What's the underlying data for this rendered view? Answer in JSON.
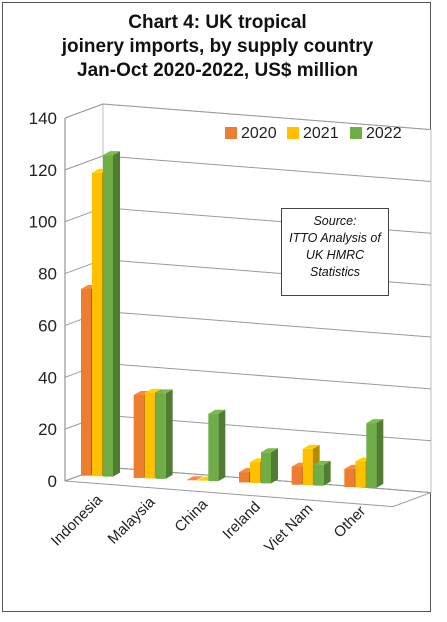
{
  "title": {
    "line1": "Chart 4: UK tropical",
    "line2": "joinery imports, by supply country",
    "line3": "Jan-Oct 2020-2022, US$ million"
  },
  "source_note": {
    "line1": "Source:",
    "line2": "ITTO Analysis of",
    "line3": "UK HMRC",
    "line4": "Statistics"
  },
  "legend": [
    {
      "label": "2020",
      "color": "#ED7D31"
    },
    {
      "label": "2021",
      "color": "#FFC000"
    },
    {
      "label": "2022",
      "color": "#70AD47"
    }
  ],
  "chart_data": {
    "type": "bar",
    "title": "Chart 4: UK tropical joinery imports, by supply country Jan-Oct 2020-2022, US$ million",
    "categories": [
      "Indonesia",
      "Malaysia",
      "China",
      "Ireland",
      "Viet Nam",
      "Other"
    ],
    "series": [
      {
        "name": "2020",
        "values": [
          72,
          32,
          0,
          4,
          7,
          7
        ]
      },
      {
        "name": "2021",
        "values": [
          117,
          33,
          0,
          8,
          14,
          10
        ]
      },
      {
        "name": "2022",
        "values": [
          124,
          33,
          26,
          12,
          8,
          25
        ]
      }
    ],
    "ylim": [
      0,
      140
    ],
    "yticks": [
      0,
      20,
      40,
      60,
      80,
      100,
      120,
      140
    ],
    "grid": true,
    "legend_position": "top-right"
  }
}
